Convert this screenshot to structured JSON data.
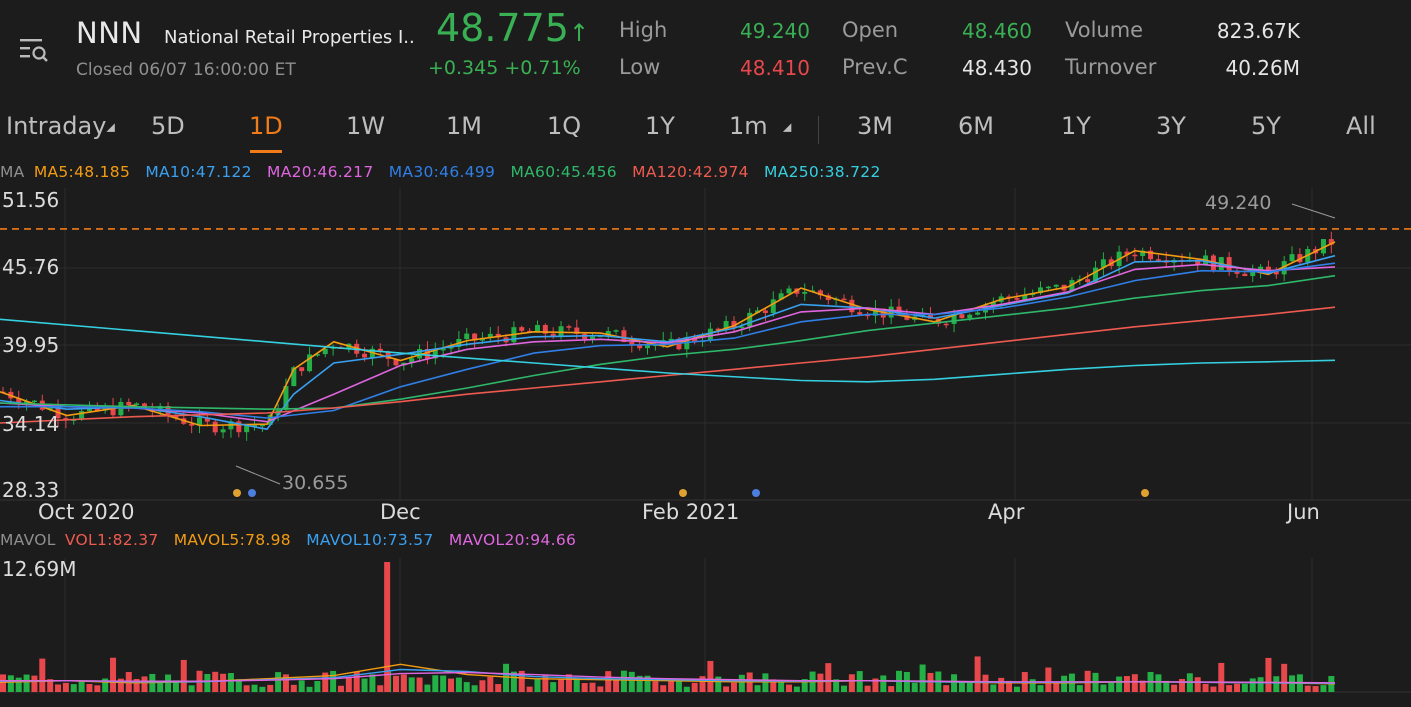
{
  "header": {
    "ticker": "NNN",
    "company": "National Retail Properties I...",
    "status": "Closed  06/07 16:00:00 ET",
    "price": "48.775",
    "price_arrow": "↑",
    "change": "+0.345 +0.71%",
    "stats": {
      "high_label": "High",
      "high_value": "49.240",
      "low_label": "Low",
      "low_value": "48.410",
      "open_label": "Open",
      "open_value": "48.460",
      "prevc_label": "Prev.C",
      "prevc_value": "48.430",
      "volume_label": "Volume",
      "volume_value": "823.67K",
      "turnover_label": "Turnover",
      "turnover_value": "40.26M"
    }
  },
  "tabs": [
    "Intraday",
    "5D",
    "1D",
    "1W",
    "1M",
    "1Q",
    "1Y",
    "1m",
    "3M",
    "6M",
    "1Y",
    "3Y",
    "5Y",
    "All"
  ],
  "active_tab": "1D",
  "ma_legend": {
    "title": "MA",
    "items": [
      {
        "label": "MA5:48.185",
        "color": "#f39c12"
      },
      {
        "label": "MA10:47.122",
        "color": "#3aa0f0"
      },
      {
        "label": "MA20:46.217",
        "color": "#e066e0"
      },
      {
        "label": "MA30:46.499",
        "color": "#2f7fe6"
      },
      {
        "label": "MA60:45.456",
        "color": "#2fb86a"
      },
      {
        "label": "MA120:42.974",
        "color": "#ee5a4f"
      },
      {
        "label": "MA250:38.722",
        "color": "#35d0e0"
      }
    ]
  },
  "mavol_legend": {
    "title": "MAVOL",
    "items": [
      {
        "label": "VOL1:82.37",
        "color": "#ee5a4f"
      },
      {
        "label": "MAVOL5:78.98",
        "color": "#f39c12"
      },
      {
        "label": "MAVOL10:73.57",
        "color": "#3aa0f0"
      },
      {
        "label": "MAVOL20:94.66",
        "color": "#e066e0"
      }
    ]
  },
  "chart_data": [
    {
      "type": "line",
      "y_ticks": [
        "51.56",
        "45.76",
        "39.95",
        "34.14",
        "28.33"
      ],
      "x_ticks": [
        "Oct 2020",
        "Dec",
        "Feb 2021",
        "Apr",
        "Jun"
      ],
      "ylim": [
        28.33,
        51.56
      ],
      "high_marker": "49.240",
      "low_marker": "30.655",
      "series": [
        {
          "name": "MA5",
          "color": "#f39c12",
          "x": [
            0,
            0.05,
            0.1,
            0.15,
            0.2,
            0.22,
            0.25,
            0.3,
            0.35,
            0.4,
            0.45,
            0.5,
            0.55,
            0.6,
            0.65,
            0.7,
            0.75,
            0.8,
            0.85,
            0.9,
            0.95,
            1.0
          ],
          "values": [
            36.2,
            34.3,
            35.1,
            33.5,
            33.6,
            38,
            40.2,
            38.7,
            40.3,
            41,
            40.9,
            39.8,
            41.5,
            44.5,
            42.8,
            41.8,
            43.6,
            44.6,
            47.5,
            46.8,
            45.6,
            48.2
          ]
        },
        {
          "name": "MA10",
          "color": "#3aa0f0",
          "x": [
            0,
            0.05,
            0.1,
            0.15,
            0.2,
            0.22,
            0.25,
            0.3,
            0.35,
            0.4,
            0.45,
            0.5,
            0.55,
            0.6,
            0.65,
            0.7,
            0.75,
            0.8,
            0.85,
            0.9,
            0.95,
            1.0
          ],
          "values": [
            35.5,
            34.8,
            35,
            34.2,
            33.2,
            36,
            38.5,
            39.2,
            40,
            40.6,
            40.7,
            40.2,
            41.3,
            43.2,
            42.9,
            42.1,
            43.1,
            44.1,
            46.6,
            46.7,
            45.7,
            47.1
          ]
        },
        {
          "name": "MA20",
          "color": "#e066e0",
          "x": [
            0,
            0.05,
            0.1,
            0.15,
            0.2,
            0.25,
            0.3,
            0.35,
            0.4,
            0.45,
            0.5,
            0.55,
            0.6,
            0.65,
            0.7,
            0.75,
            0.8,
            0.85,
            0.9,
            0.95,
            1.0
          ],
          "values": [
            35.3,
            35,
            34.9,
            34.5,
            33.8,
            36,
            38.3,
            39.6,
            40.2,
            40.4,
            40.1,
            41,
            42.6,
            42.9,
            42.4,
            43.2,
            44.2,
            46,
            46.4,
            45.9,
            46.2
          ]
        },
        {
          "name": "MA30",
          "color": "#2f7fe6",
          "x": [
            0,
            0.05,
            0.1,
            0.15,
            0.2,
            0.25,
            0.3,
            0.35,
            0.4,
            0.45,
            0.5,
            0.55,
            0.6,
            0.65,
            0.7,
            0.75,
            0.8,
            0.85,
            0.9,
            0.95,
            1.0
          ],
          "values": [
            35,
            35,
            34.9,
            34.6,
            34.1,
            34.7,
            36.6,
            38,
            39.3,
            39.9,
            40,
            40.5,
            41.8,
            42.4,
            42.4,
            42.9,
            43.8,
            45.1,
            45.9,
            45.8,
            46.5
          ]
        },
        {
          "name": "MA60",
          "color": "#2fb86a",
          "x": [
            0,
            0.1,
            0.2,
            0.25,
            0.3,
            0.35,
            0.4,
            0.45,
            0.5,
            0.55,
            0.6,
            0.65,
            0.7,
            0.75,
            0.8,
            0.85,
            0.9,
            0.95,
            1.0
          ],
          "values": [
            35.3,
            35,
            34.8,
            34.9,
            35.6,
            36.5,
            37.5,
            38.4,
            39.1,
            39.6,
            40.3,
            41.1,
            41.7,
            42.3,
            42.9,
            43.7,
            44.3,
            44.7,
            45.5
          ]
        },
        {
          "name": "MA120",
          "color": "#ee5a4f",
          "x": [
            0,
            0.1,
            0.2,
            0.25,
            0.3,
            0.35,
            0.4,
            0.45,
            0.5,
            0.55,
            0.6,
            0.65,
            0.7,
            0.75,
            0.8,
            0.85,
            0.9,
            0.95,
            1.0
          ],
          "values": [
            33.7,
            34.2,
            34.5,
            34.9,
            35.4,
            36,
            36.5,
            37,
            37.5,
            38,
            38.5,
            39,
            39.6,
            40.2,
            40.8,
            41.4,
            41.9,
            42.4,
            42.97
          ]
        },
        {
          "name": "MA250",
          "color": "#35d0e0",
          "x": [
            0,
            0.1,
            0.2,
            0.3,
            0.4,
            0.5,
            0.6,
            0.65,
            0.7,
            0.75,
            0.8,
            0.85,
            0.9,
            0.95,
            1.0
          ],
          "values": [
            42,
            41.1,
            40.2,
            39.3,
            38.5,
            37.7,
            37.1,
            37,
            37.2,
            37.6,
            38,
            38.3,
            38.5,
            38.6,
            38.72
          ]
        }
      ]
    },
    {
      "type": "bar",
      "y_ticks": [
        "12.69M"
      ],
      "volume_unit": "M",
      "ylim": [
        0,
        12.69
      ],
      "spike_bar": {
        "x": 0.29,
        "value": 12.69,
        "color": "#e8474b"
      }
    }
  ]
}
